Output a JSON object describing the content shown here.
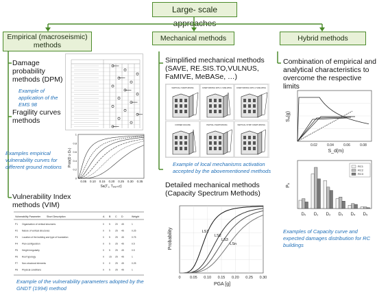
{
  "title": "Large- scale approaches",
  "columns": {
    "empirical": {
      "header": "Empirical (macroseismic) methods",
      "dpm_label": "Damage probability methods (DPM)",
      "dpm_caption": "Example of application of the EMS 98",
      "fragility_label": "Fragility curves methods",
      "fragility_caption": "Examples empirical vulnerability curves for different ground motions",
      "fragility_chart": {
        "ylabel": "Prob(D ≥ Dₖ)",
        "xlabel": "Sa(T₁, Tₑₗₐₛₜᵢc)",
        "xticks": [
          "0.05",
          "0.10",
          "0.15",
          "0.20",
          "0.25",
          "0.30",
          "0.35"
        ],
        "yticks": [
          "0",
          "0.2",
          "0.4",
          "0.6",
          "0.8",
          "1"
        ]
      },
      "vim_label": "Vulnerability Index methods (VIM)",
      "vim_caption": "Example of the vulnerability parameters adopted by the GNDT (1994) method",
      "vim_table": {
        "headers": [
          "Vulnerability Parameter",
          "Short Description",
          "A",
          "B",
          "C",
          "D",
          "Weight"
        ],
        "rows": [
          [
            "P1",
            "Organization of vertical structures",
            "0",
            "5",
            "20",
            "45",
            "1"
          ],
          [
            "P2",
            "Nature of vertical structures",
            "0",
            "5",
            "25",
            "45",
            "0.25"
          ],
          [
            "P3",
            "Location of the building and type of foundation",
            "0",
            "5",
            "25",
            "45",
            "0.75"
          ],
          [
            "P4",
            "Plan-configuration",
            "0",
            "5",
            "25",
            "45",
            "0.5"
          ],
          [
            "P5",
            "Height irregularity",
            "0",
            "5",
            "25",
            "45",
            "0.5"
          ],
          [
            "P6",
            "Roof typology",
            "0",
            "15",
            "25",
            "45",
            "1"
          ],
          [
            "P7",
            "Non-structural elements",
            "0",
            "0",
            "25",
            "45",
            "0.25"
          ],
          [
            "P8",
            "Physical conditions",
            "0",
            "5",
            "25",
            "45",
            "1"
          ]
        ]
      }
    },
    "mechanical": {
      "header": "Mechanical methods",
      "simplified_label": "Simplified mechanical methods (SAVE, RE.SIS.TO,VULNUS, FaMIVE, MeBASe, …)",
      "mechanisms": [
        "VERTICAL OVERTURNING",
        "OVERTURNING WITH 1 SIDE WING",
        "OVERTURNING WITH 2 SIDE WING",
        "CORNER FAILURE",
        "PARTIAL OVERTURNING",
        "VERTICAL STRIP OVERTURNING"
      ],
      "simplified_caption": "Example of local mechanisms activation accepted by the abovementioned methods",
      "detailed_label": "Detailed mechanical methods (Capacity Spectrum Methods)",
      "capacity_chart": {
        "ylabel": "Probability",
        "xlabel": "PGA [g]",
        "xticks": [
          "0",
          "0.05",
          "0.10",
          "0.15",
          "0.20",
          "0.25",
          "0.30"
        ],
        "series_labels": [
          "LS1",
          "LS2",
          "LS3",
          "LSn"
        ]
      }
    },
    "hybrid": {
      "header": "Hybrid methods",
      "combo_label": "Combination of empirical and analytical characteristics to overcome the respective limits",
      "spectrum_chart": {
        "ylabel": "Sₐ(g)",
        "xlabel": "S_d(m)",
        "yticks": [
          "0",
          "0.5",
          "1.0",
          "1.5"
        ],
        "xticks": [
          "0.02",
          "0.04",
          "0.06",
          "0.08"
        ]
      },
      "histogram": {
        "ylabel": "Pₖ",
        "categories": [
          "D₀",
          "D₁",
          "D₂",
          "D₃",
          "D₄",
          "D₅"
        ],
        "legend": [
          "RC1",
          "RC2",
          "RC3"
        ]
      },
      "caption": "Examples of Capacity curve and expected damages distribution for RC buildings"
    }
  },
  "colors": {
    "accent_green": "#4b8a2a",
    "caption_blue": "#1f6fb8",
    "box_fill": "#e8f1d8"
  }
}
